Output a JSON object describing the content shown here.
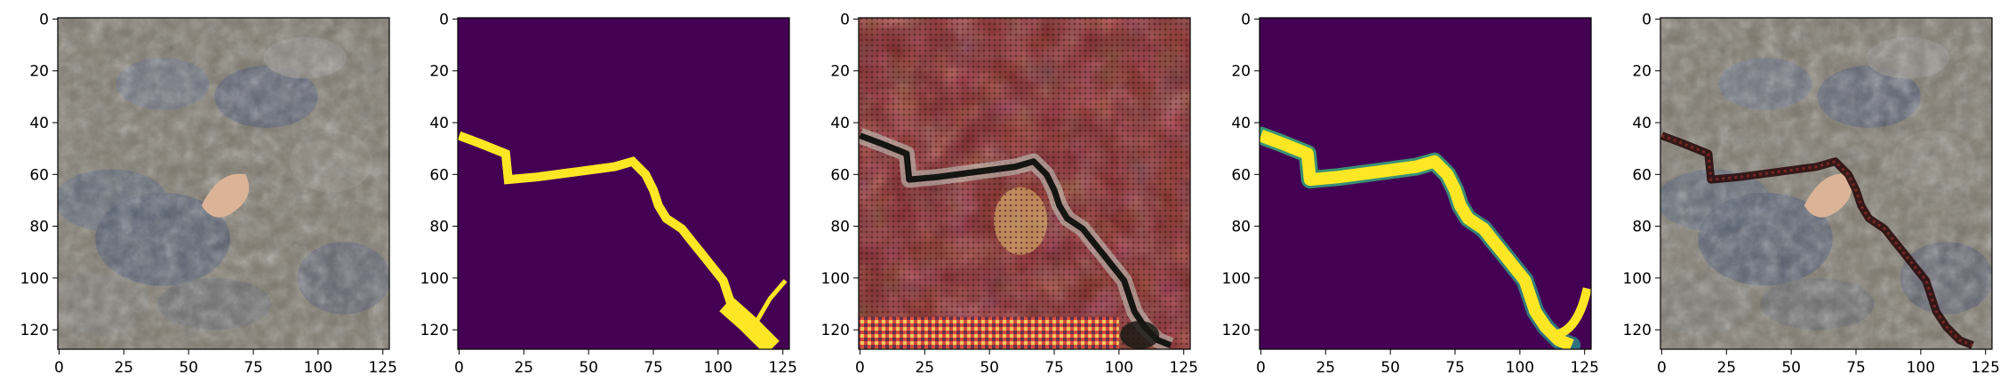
{
  "figure": {
    "panel_count": 5,
    "panels": [
      {
        "id": "input-image",
        "content": "rock-texture-photo"
      },
      {
        "id": "ground-truth-mask",
        "content": "binary-crack-mask"
      },
      {
        "id": "generated-image",
        "content": "reddish-crack-texture"
      },
      {
        "id": "predicted-mask",
        "content": "soft-crack-mask"
      },
      {
        "id": "overlay",
        "content": "crack-overlay-on-photo"
      }
    ],
    "axes": {
      "x_ticks": [
        "0",
        "25",
        "50",
        "75",
        "100",
        "125"
      ],
      "y_ticks": [
        "0",
        "20",
        "40",
        "60",
        "80",
        "100",
        "120"
      ],
      "xlim": [
        -0.5,
        127.5
      ],
      "ylim": [
        127.5,
        -0.5
      ]
    },
    "colors": {
      "mask_background": "#440154",
      "mask_foreground": "#fde725",
      "rock_base": "#7d786c",
      "generated_base": "#7a2a2a"
    }
  }
}
